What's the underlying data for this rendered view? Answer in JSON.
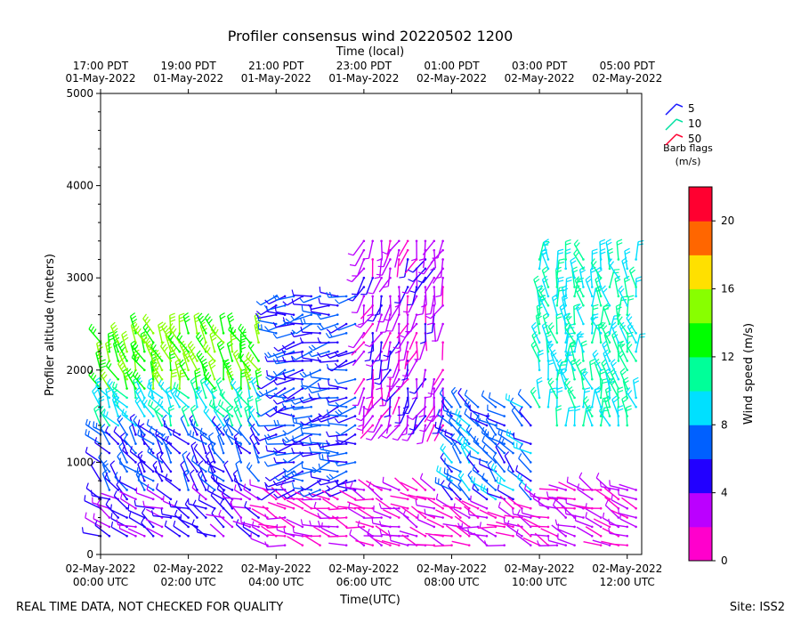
{
  "chart_data": {
    "type": "wind-barb",
    "title": "Profiler consensus wind 20220502 1200",
    "top_axis_label": "Time (local)",
    "xlabel": "Time(UTC)",
    "ylabel": "Profiler altitude (meters)",
    "ylim": [
      0,
      5000
    ],
    "yticks": [
      0,
      1000,
      2000,
      3000,
      4000,
      5000
    ],
    "xlim_hours_utc": [
      0,
      12.33
    ],
    "x_ticks_utc": [
      {
        "line1": "02-May-2022",
        "line2": "00:00 UTC",
        "hour": 0
      },
      {
        "line1": "02-May-2022",
        "line2": "02:00 UTC",
        "hour": 2
      },
      {
        "line1": "02-May-2022",
        "line2": "04:00 UTC",
        "hour": 4
      },
      {
        "line1": "02-May-2022",
        "line2": "06:00 UTC",
        "hour": 6
      },
      {
        "line1": "02-May-2022",
        "line2": "08:00 UTC",
        "hour": 8
      },
      {
        "line1": "02-May-2022",
        "line2": "10:00 UTC",
        "hour": 10
      },
      {
        "line1": "02-May-2022",
        "line2": "12:00 UTC",
        "hour": 12
      }
    ],
    "x_ticks_local": [
      {
        "line1": "17:00 PDT",
        "line2": "01-May-2022",
        "hour": 0
      },
      {
        "line1": "19:00 PDT",
        "line2": "01-May-2022",
        "hour": 2
      },
      {
        "line1": "21:00 PDT",
        "line2": "01-May-2022",
        "hour": 4
      },
      {
        "line1": "23:00 PDT",
        "line2": "01-May-2022",
        "hour": 6
      },
      {
        "line1": "01:00 PDT",
        "line2": "02-May-2022",
        "hour": 8
      },
      {
        "line1": "03:00 PDT",
        "line2": "02-May-2022",
        "hour": 10
      },
      {
        "line1": "05:00 PDT",
        "line2": "02-May-2022",
        "hour": 12
      }
    ],
    "barb_legend": {
      "entries": [
        {
          "label": "5",
          "color": "#1a1aff"
        },
        {
          "label": "10",
          "color": "#00e0a0"
        },
        {
          "label": "50",
          "color": "#ff0030"
        }
      ],
      "caption_line1": "Barb flags",
      "caption_line2": "(m/s)"
    },
    "colorbar": {
      "label": "Wind speed (m/s)",
      "ticks": [
        0,
        4,
        8,
        12,
        16,
        20
      ],
      "range": [
        0,
        22
      ],
      "colors": [
        "#ff00cc",
        "#bb00ff",
        "#2200ff",
        "#0060ff",
        "#00e0ff",
        "#00ff99",
        "#00ff00",
        "#88ff00",
        "#ffe000",
        "#ff6600",
        "#ff0030"
      ]
    },
    "wind_profiles_note": "profiles sampled roughly every 12 minutes from 00:00 to 12:20 UTC; speeds shown by color and barb feathers",
    "profile_segments": [
      {
        "t0": 0.0,
        "t1": 3.7,
        "zmin": 150,
        "zmax": 1400,
        "speed": 4,
        "dir": 300
      },
      {
        "t0": 0.0,
        "t1": 3.7,
        "zmin": 700,
        "zmax": 1400,
        "speed": 6,
        "dir": 320
      },
      {
        "t0": 0.0,
        "t1": 3.7,
        "zmin": 1400,
        "zmax": 2200,
        "speed": 10,
        "dir": 330
      },
      {
        "t0": 0.0,
        "t1": 3.7,
        "zmin": 1800,
        "zmax": 2400,
        "speed": 14,
        "dir": 340
      },
      {
        "t0": 3.7,
        "t1": 12.33,
        "zmin": 0,
        "zmax": 700,
        "speed": 2,
        "dir": 290
      },
      {
        "t0": 4.0,
        "t1": 6.0,
        "zmin": 700,
        "zmax": 2800,
        "speed": 6,
        "dir": 260
      },
      {
        "t0": 6.0,
        "t1": 8.0,
        "zmin": 1400,
        "zmax": 3400,
        "speed": 3,
        "dir": 200
      },
      {
        "t0": 8.0,
        "t1": 9.8,
        "zmin": 600,
        "zmax": 1600,
        "speed": 7,
        "dir": 310
      },
      {
        "t0": 9.8,
        "t1": 12.33,
        "zmin": 1400,
        "zmax": 3200,
        "speed": 10,
        "dir": 350
      }
    ]
  },
  "footer": {
    "left": "REAL TIME DATA, NOT CHECKED FOR QUALITY",
    "right": "Site: ISS2"
  }
}
